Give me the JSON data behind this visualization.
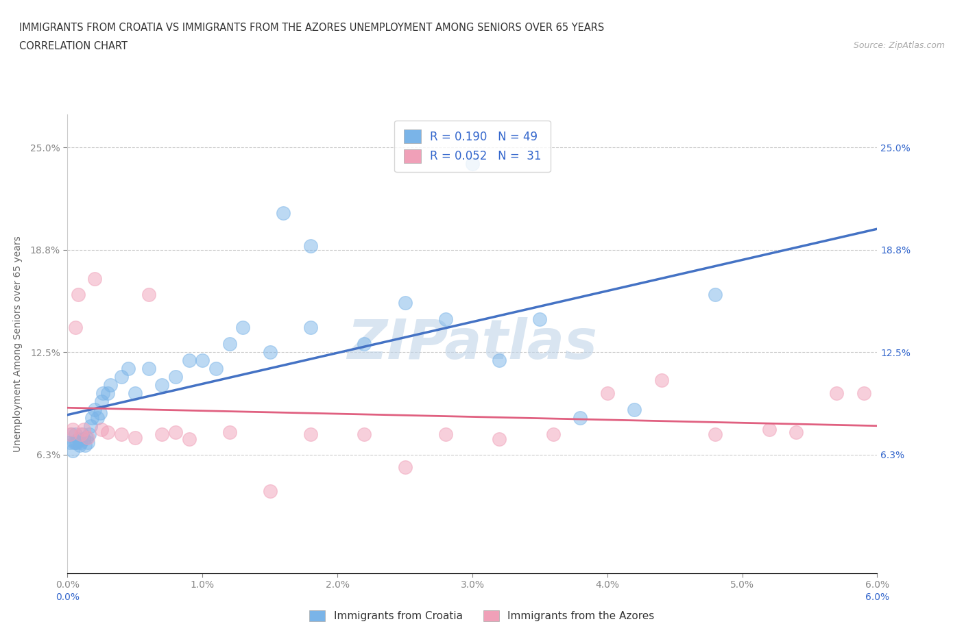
{
  "title_line1": "IMMIGRANTS FROM CROATIA VS IMMIGRANTS FROM THE AZORES UNEMPLOYMENT AMONG SENIORS OVER 65 YEARS",
  "title_line2": "CORRELATION CHART",
  "source_text": "Source: ZipAtlas.com",
  "ylabel": "Unemployment Among Seniors over 65 years",
  "xlim": [
    0.0,
    0.06
  ],
  "ylim": [
    -0.01,
    0.27
  ],
  "xticks": [
    0.0,
    0.01,
    0.02,
    0.03,
    0.04,
    0.05,
    0.06
  ],
  "xticklabels": [
    "0.0%",
    "1.0%",
    "2.0%",
    "3.0%",
    "4.0%",
    "5.0%",
    "6.0%"
  ],
  "yticks": [
    0.0625,
    0.125,
    0.1875,
    0.25
  ],
  "yticklabels": [
    "6.3%",
    "12.5%",
    "18.8%",
    "25.0%"
  ],
  "grid_color": "#cccccc",
  "watermark_text": "ZIPatlas",
  "watermark_color": "#c0d4e8",
  "croatia_color": "#7ab4e8",
  "azores_color": "#f0a0b8",
  "croatia_line_color": "#4472c4",
  "azores_line_color": "#e06080",
  "croatia_R": 0.19,
  "croatia_N": 49,
  "azores_R": 0.052,
  "azores_N": 31,
  "legend_R_color": "#3366cc",
  "tick_color": "#3366cc",
  "axis_label_color": "#666666",
  "croatia_scatter_x": [
    0.0002,
    0.0003,
    0.0004,
    0.0005,
    0.0006,
    0.0006,
    0.0007,
    0.0008,
    0.0009,
    0.001,
    0.0011,
    0.0012,
    0.0013,
    0.0014,
    0.0015,
    0.0016,
    0.0017,
    0.0018,
    0.002,
    0.0022,
    0.0024,
    0.0025,
    0.0026,
    0.003,
    0.0032,
    0.004,
    0.0045,
    0.005,
    0.006,
    0.007,
    0.008,
    0.009,
    0.01,
    0.011,
    0.012,
    0.013,
    0.015,
    0.016,
    0.018,
    0.022,
    0.025,
    0.028,
    0.03,
    0.032,
    0.035,
    0.038,
    0.042,
    0.048,
    0.018
  ],
  "croatia_scatter_y": [
    0.07,
    0.075,
    0.065,
    0.07,
    0.07,
    0.075,
    0.07,
    0.072,
    0.068,
    0.07,
    0.075,
    0.072,
    0.068,
    0.073,
    0.07,
    0.075,
    0.08,
    0.085,
    0.09,
    0.085,
    0.088,
    0.095,
    0.1,
    0.1,
    0.105,
    0.11,
    0.115,
    0.1,
    0.115,
    0.105,
    0.11,
    0.12,
    0.12,
    0.115,
    0.13,
    0.14,
    0.125,
    0.21,
    0.19,
    0.13,
    0.155,
    0.145,
    0.24,
    0.12,
    0.145,
    0.085,
    0.09,
    0.16,
    0.14
  ],
  "azores_scatter_x": [
    0.0002,
    0.0004,
    0.0006,
    0.0008,
    0.001,
    0.0012,
    0.0015,
    0.002,
    0.0025,
    0.003,
    0.004,
    0.005,
    0.006,
    0.007,
    0.008,
    0.009,
    0.012,
    0.015,
    0.018,
    0.022,
    0.025,
    0.028,
    0.032,
    0.036,
    0.04,
    0.044,
    0.048,
    0.052,
    0.054,
    0.057,
    0.059
  ],
  "azores_scatter_y": [
    0.075,
    0.078,
    0.14,
    0.16,
    0.075,
    0.078,
    0.073,
    0.17,
    0.078,
    0.076,
    0.075,
    0.073,
    0.16,
    0.075,
    0.076,
    0.072,
    0.076,
    0.04,
    0.075,
    0.075,
    0.055,
    0.075,
    0.072,
    0.075,
    0.1,
    0.108,
    0.075,
    0.078,
    0.076,
    0.1,
    0.1
  ]
}
